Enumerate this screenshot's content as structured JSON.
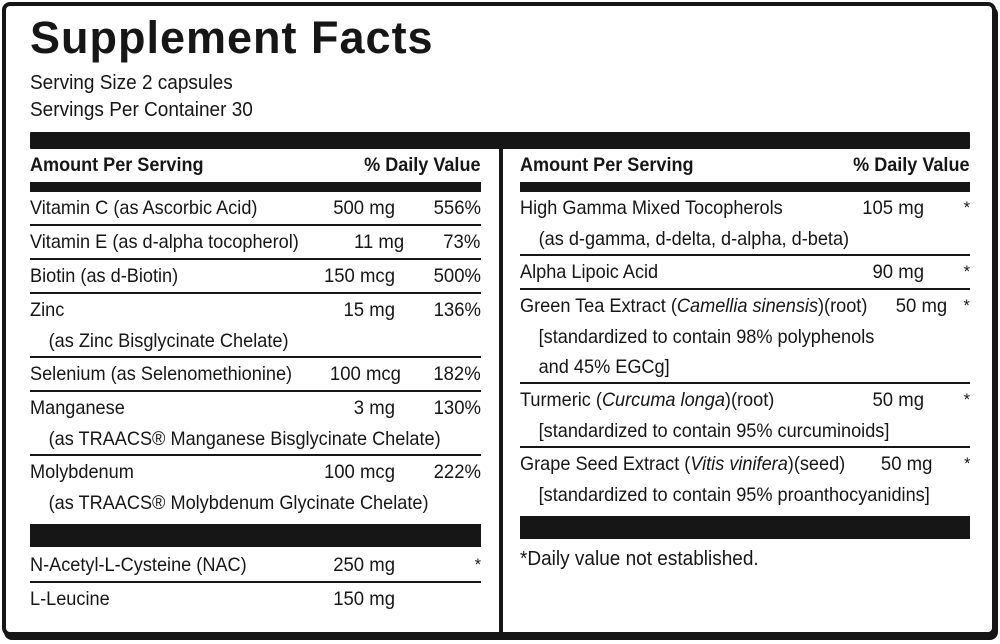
{
  "title": "Supplement Facts",
  "serving": {
    "size": "Serving Size 2 capsules",
    "per_container": "Servings Per Container 30"
  },
  "colors": {
    "ink": "#161616",
    "background": "#ffffff"
  },
  "columns": [
    {
      "header": {
        "amount": "Amount Per Serving",
        "dv": "% Daily Value"
      },
      "blocks": [
        {
          "type": "row",
          "name": [
            {
              "text": "Vitamin C (as Ascorbic Acid)"
            }
          ],
          "amount": "500 mg",
          "dv": "556%",
          "divider": true
        },
        {
          "type": "row",
          "name": [
            {
              "text": "Vitamin E (as d-alpha tocopherol)"
            }
          ],
          "amount": "11 mg",
          "dv": "73%",
          "divider": true
        },
        {
          "type": "row",
          "name": [
            {
              "text": "Biotin (as d-Biotin)"
            }
          ],
          "amount": "150 mcg",
          "dv": "500%",
          "divider": true
        },
        {
          "type": "row",
          "name": [
            {
              "text": "Zinc"
            }
          ],
          "amount": "15 mg",
          "dv": "136%",
          "subs": [
            "(as Zinc Bisglycinate Chelate)"
          ],
          "divider": true
        },
        {
          "type": "row",
          "name": [
            {
              "text": "Selenium (as Selenomethionine)"
            }
          ],
          "amount": "100 mcg",
          "dv": "182%",
          "divider": true
        },
        {
          "type": "row",
          "name": [
            {
              "text": "Manganese"
            }
          ],
          "amount": "3 mg",
          "dv": "130%",
          "subs": [
            "(as TRAACS® Manganese Bisglycinate Chelate)"
          ],
          "divider": true
        },
        {
          "type": "row",
          "name": [
            {
              "text": "Molybdenum"
            }
          ],
          "amount": "100 mcg",
          "dv": "222%",
          "subs": [
            "(as TRAACS® Molybdenum Glycinate Chelate)"
          ],
          "divider": false
        },
        {
          "type": "bar"
        },
        {
          "type": "row",
          "name": [
            {
              "text": "N-Acetyl-L-Cysteine (NAC)"
            }
          ],
          "amount": "250 mg",
          "dv": "*",
          "divider": true
        },
        {
          "type": "row",
          "name": [
            {
              "text": "L-Leucine"
            }
          ],
          "amount": "150 mg",
          "dv": "",
          "divider": false
        }
      ]
    },
    {
      "header": {
        "amount": "Amount Per Serving",
        "dv": "% Daily Value"
      },
      "blocks": [
        {
          "type": "row",
          "name": [
            {
              "text": "High Gamma Mixed Tocopherols"
            }
          ],
          "amount": "105 mg",
          "dv": "*",
          "subs": [
            "(as d-gamma, d-delta, d-alpha, d-beta)"
          ],
          "divider": true
        },
        {
          "type": "row",
          "name": [
            {
              "text": "Alpha Lipoic Acid"
            }
          ],
          "amount": "90 mg",
          "dv": "*",
          "divider": true
        },
        {
          "type": "row",
          "name": [
            {
              "text": "Green Tea Extract ("
            },
            {
              "text": "Camellia sinensis",
              "italic": true
            },
            {
              "text": ")(root)"
            }
          ],
          "amount": "50 mg",
          "dv": "*",
          "subs": [
            "[standardized to contain 98% polyphenols",
            "and 45% EGCg]"
          ],
          "divider": true
        },
        {
          "type": "row",
          "name": [
            {
              "text": "Turmeric ("
            },
            {
              "text": "Curcuma longa",
              "italic": true
            },
            {
              "text": ")(root)"
            }
          ],
          "amount": "50 mg",
          "dv": "*",
          "subs": [
            "[standardized to contain 95% curcuminoids]"
          ],
          "divider": true
        },
        {
          "type": "row",
          "name": [
            {
              "text": "Grape Seed Extract ("
            },
            {
              "text": "Vitis vinifera",
              "italic": true
            },
            {
              "text": ")(seed)"
            }
          ],
          "amount": "50 mg",
          "dv": "*",
          "subs": [
            "[standardized to contain 95% proanthocyanidins]"
          ],
          "divider": false
        },
        {
          "type": "bar"
        },
        {
          "type": "note",
          "text": "*Daily value not established."
        }
      ]
    }
  ]
}
